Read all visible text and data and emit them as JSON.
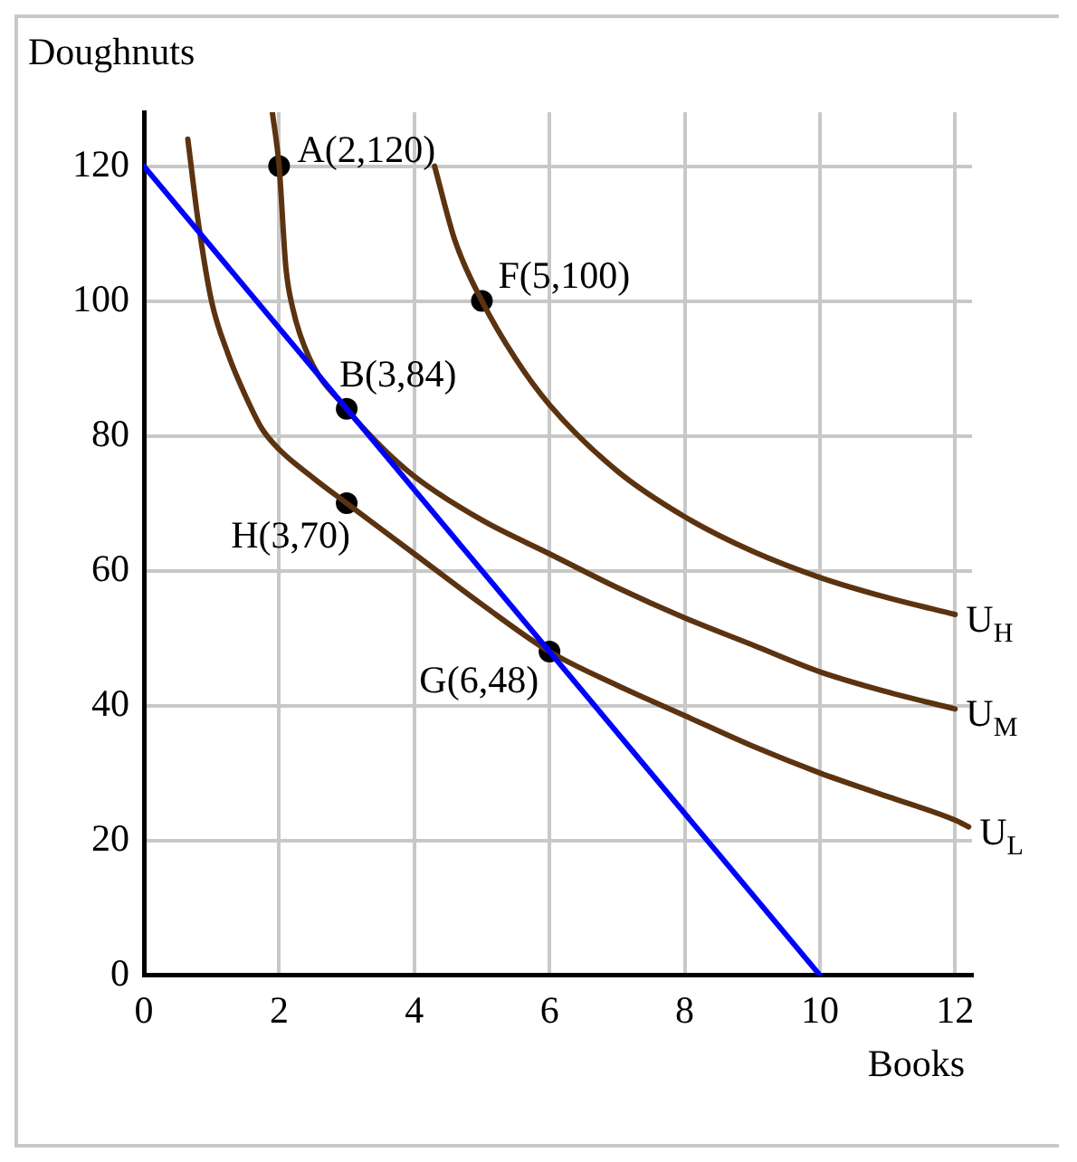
{
  "chart_data": {
    "type": "line",
    "xlabel": "Books",
    "ylabel": "Doughnuts",
    "xlim": [
      0,
      12.25
    ],
    "ylim": [
      0,
      128
    ],
    "xticks": [
      0,
      2,
      4,
      6,
      8,
      10,
      12
    ],
    "yticks": [
      0,
      20,
      40,
      60,
      80,
      100,
      120
    ],
    "grid": true,
    "legend": false,
    "line_style": "solid",
    "marker": "none",
    "series": [
      {
        "color": "#0000ff",
        "x": [
          0,
          10
        ],
        "values": [
          120,
          0
        ]
      },
      {
        "name": "U$_{H}$",
        "color": "#5c3310",
        "x": [
          4.3,
          4.6,
          5,
          5.5,
          6,
          7,
          8,
          9,
          10,
          11,
          12
        ],
        "values": [
          120,
          109,
          100,
          91.4,
          84.6,
          74.8,
          68,
          62.9,
          59,
          56,
          53.5
        ]
      },
      {
        "name": "U$_{M}$",
        "color": "#5c3310",
        "x": [
          1.9,
          2,
          2.1,
          2.2,
          2.45,
          3,
          3.5,
          4,
          5,
          6,
          7,
          8,
          9,
          10,
          11,
          12
        ],
        "values": [
          128,
          120,
          105,
          99,
          91.5,
          84,
          78.5,
          74,
          67.5,
          62.5,
          57.5,
          53,
          49,
          45,
          42,
          39.5
        ]
      },
      {
        "name": "U$_{L}$",
        "color": "#5c3310",
        "x": [
          0.65,
          0.8,
          1,
          1.25,
          1.5,
          1.75,
          2,
          2.5,
          3,
          4,
          5,
          6,
          7,
          8,
          9,
          10,
          11,
          12,
          12.2
        ],
        "values": [
          124,
          112,
          100,
          92,
          86,
          81,
          78,
          73.8,
          70,
          62.5,
          55,
          48,
          43,
          38.5,
          34,
          30,
          26.5,
          23,
          22
        ]
      },
      {
        "type": "scatter",
        "marker": "circle",
        "color": "#000000",
        "x": [
          2,
          3,
          5,
          6,
          3
        ],
        "values": [
          120,
          84,
          100,
          48,
          70
        ]
      }
    ],
    "annotations": [
      {
        "text": "A(2,120)",
        "x": 2,
        "y": 120
      },
      {
        "text": "B(3,84)",
        "x": 3,
        "y": 84
      },
      {
        "text": "F(5,100)",
        "x": 5,
        "y": 100
      },
      {
        "text": "G(6,48)",
        "x": 6,
        "y": 48
      },
      {
        "text": "H(3,70)",
        "x": 3,
        "y": 70
      }
    ]
  }
}
